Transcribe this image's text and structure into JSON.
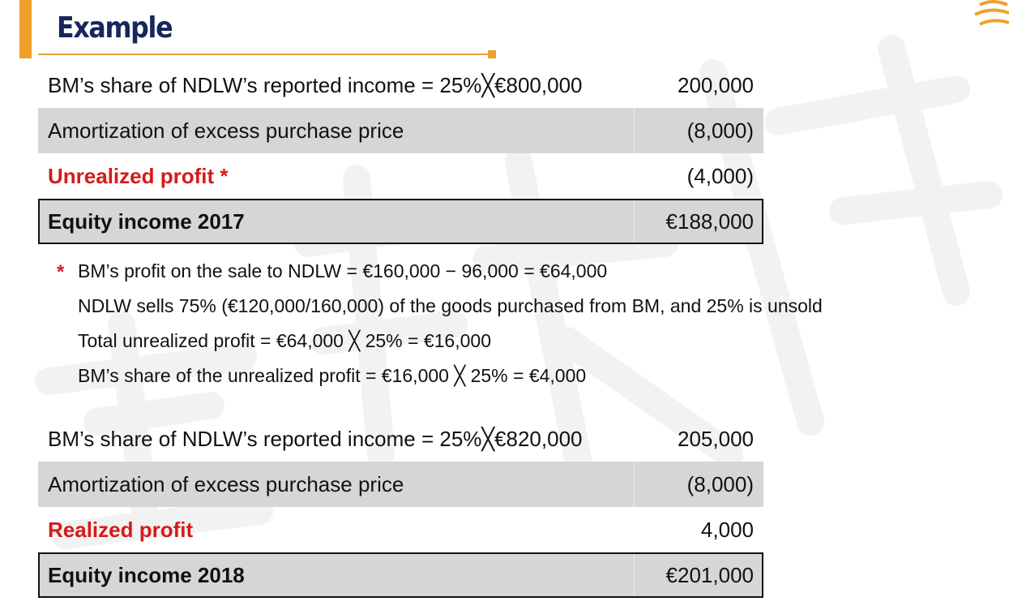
{
  "slide": {
    "title": "Example"
  },
  "table_2017": {
    "rows": [
      {
        "label": "BM’s share of NDLW’s reported income = 25%╳€800,000",
        "value": "200,000"
      },
      {
        "label": "Amortization of excess purchase price",
        "value": "(8,000)"
      },
      {
        "label": "Unrealized profit *",
        "value": "(4,000)"
      },
      {
        "label": "Equity income 2017",
        "value": "€188,000"
      }
    ]
  },
  "notes": {
    "marker": "*",
    "lines": [
      "BM’s profit on the sale to NDLW = €160,000 − 96,000 = €64,000",
      "NDLW sells 75% (€120,000/160,000) of the goods purchased from BM, and 25% is unsold",
      "Total unrealized profit = €64,000 ╳ 25% = €16,000",
      "BM’s share of the unrealized profit = €16,000 ╳ 25% = €4,000"
    ]
  },
  "table_2018": {
    "rows": [
      {
        "label": "BM’s share of NDLW’s reported income = 25%╳€820,000",
        "value": "205,000"
      },
      {
        "label": "Amortization of excess purchase price",
        "value": "(8,000)"
      },
      {
        "label": "Realized profit",
        "value": "4,000"
      },
      {
        "label": "Equity income 2018",
        "value": "€201,000"
      }
    ]
  },
  "colors": {
    "accent": "#f0a02a",
    "title": "#17275c",
    "highlight": "#d61a1a",
    "shade": "#d6d6d6"
  }
}
